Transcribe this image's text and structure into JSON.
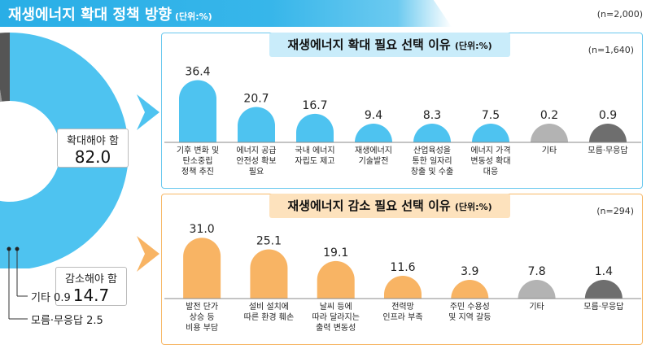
{
  "header": {
    "title": "재생에너지 확대 정책 방향",
    "unit": "(단위:%)",
    "n": "(n=2,000)"
  },
  "donut": {
    "expand": {
      "label": "확대해야 함",
      "value": "82.0"
    },
    "reduce": {
      "label": "감소해야 함",
      "value": "14.7"
    },
    "other": "기타  0.9",
    "unsure": "모름·무응답  2.5",
    "colors": {
      "expand": "#4ec3f0",
      "reduce": "#f8b464",
      "other": "#9a9a9a",
      "unsure": "#555555"
    }
  },
  "chart_data": [
    {
      "type": "bar",
      "title": "재생에너지 확대 필요 선택 이유",
      "unit": "(단위:%)",
      "n": "(n=1,640)",
      "categories": [
        [
          "기후 변화 및",
          "탄소중립",
          "정책 추진"
        ],
        [
          "에너지 공급",
          "안전성 확보",
          "필요"
        ],
        [
          "국내 에너지",
          "자립도 제고"
        ],
        [
          "재생에너지",
          "기술발전"
        ],
        [
          "산업육성을",
          "통한 일자리",
          "창출 및 수출"
        ],
        [
          "에너지 가격",
          "변동성 확대",
          "대응"
        ],
        [
          "기타"
        ],
        [
          "모름·무응답"
        ]
      ],
      "values": [
        36.4,
        20.7,
        16.7,
        9.4,
        8.3,
        7.5,
        0.2,
        0.9
      ],
      "value_labels": [
        "36.4",
        "20.7",
        "16.7",
        "9.4",
        "8.3",
        "7.5",
        "0.2",
        "0.9"
      ],
      "colors": [
        "#4ec3f0",
        "#4ec3f0",
        "#4ec3f0",
        "#4ec3f0",
        "#4ec3f0",
        "#4ec3f0",
        "#b3b3b3",
        "#6e6e6e"
      ],
      "ylim": [
        0,
        40
      ]
    },
    {
      "type": "bar",
      "title": "재생에너지 감소 필요 선택 이유",
      "unit": "(단위:%)",
      "n": "(n=294)",
      "categories": [
        [
          "발전 단가",
          "상승 등",
          "비용 부담"
        ],
        [
          "설비 설치에",
          "따른 환경 훼손"
        ],
        [
          "날씨 등에",
          "따라 달라지는",
          "출력 변동성"
        ],
        [
          "전력망",
          "인프라 부족"
        ],
        [
          "주민 수용성",
          "및 지역 갈등"
        ],
        [
          "기타"
        ],
        [
          "모름·무응답"
        ]
      ],
      "values": [
        31.0,
        25.1,
        19.1,
        11.6,
        3.9,
        7.8,
        1.4
      ],
      "value_labels": [
        "31.0",
        "25.1",
        "19.1",
        "11.6",
        "3.9",
        "7.8",
        "1.4"
      ],
      "colors": [
        "#f8b464",
        "#f8b464",
        "#f8b464",
        "#f8b464",
        "#f8b464",
        "#b3b3b3",
        "#6e6e6e"
      ],
      "ylim": [
        0,
        34
      ]
    }
  ]
}
